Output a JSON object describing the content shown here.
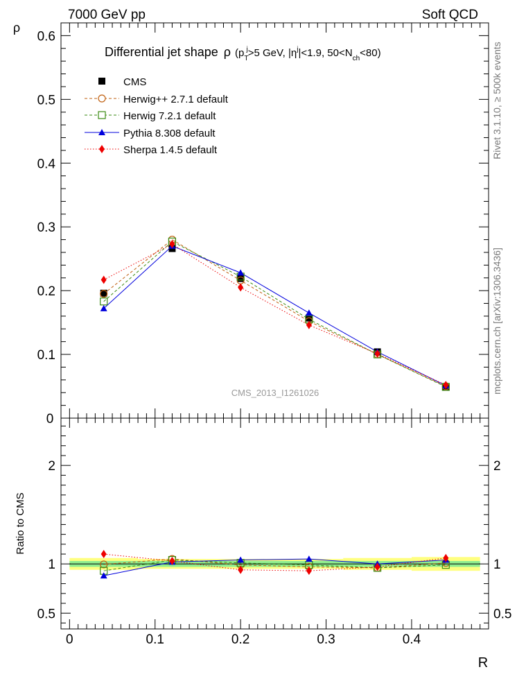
{
  "header": {
    "left": "7000 GeV pp",
    "right": "Soft QCD"
  },
  "side_text": {
    "rivet": "Rivet 3.1.10, ≥ 500k events",
    "mcplots": "mcplots.cern.ch [arXiv:1306.3436]"
  },
  "watermark": "CMS_2013_I1261026",
  "chart_data": [
    {
      "type": "line",
      "title": "Differential jet shape ρ (p_T^j>5 GeV, |η^j|<1.9, 50<N_ch<80)",
      "title_main": "Differential jet shape",
      "title_rho": "ρ",
      "title_open": "(p",
      "title_T": "T",
      "title_j1": "j",
      "title_mid": ">5 GeV, |η",
      "title_j2": "j",
      "title_mid2": "|<1.9, 50<N",
      "title_ch": "ch",
      "title_close": "<80)",
      "ylabel": "ρ",
      "xlim": [
        -0.01,
        0.49
      ],
      "ylim": [
        0,
        0.62
      ],
      "yticks": [
        0.1,
        0.2,
        0.3,
        0.4,
        0.5,
        0.6
      ],
      "ytick_labels": [
        "0.1",
        "0.2",
        "0.3",
        "0.4",
        "0.5",
        "0.6"
      ],
      "zero_label": "0",
      "x": [
        0.04,
        0.12,
        0.2,
        0.28,
        0.36,
        0.44
      ],
      "legend_position": "top-left",
      "series": [
        {
          "name": "CMS",
          "marker": "square-filled",
          "color": "#000000",
          "values": [
            0.196,
            0.266,
            0.219,
            0.157,
            0.104,
            0.049
          ]
        },
        {
          "name": "Herwig++ 2.7.1 default",
          "marker": "circle-open",
          "color": "#c06010",
          "style": "dashed",
          "values": [
            0.195,
            0.28,
            0.216,
            0.152,
            0.1,
            0.05
          ]
        },
        {
          "name": "Herwig 7.2.1 default",
          "marker": "square-open",
          "color": "#3a8a10",
          "style": "dashed",
          "values": [
            0.183,
            0.277,
            0.222,
            0.155,
            0.1,
            0.049
          ]
        },
        {
          "name": "Pythia 8.308 default",
          "marker": "triangle-filled",
          "color": "#0000dd",
          "style": "solid",
          "values": [
            0.172,
            0.27,
            0.228,
            0.165,
            0.104,
            0.051
          ]
        },
        {
          "name": "Sherpa 1.4.5 default",
          "marker": "diamond-filled",
          "color": "#ee0000",
          "style": "dotted",
          "values": [
            0.217,
            0.273,
            0.205,
            0.146,
            0.101,
            0.052
          ]
        }
      ]
    },
    {
      "type": "line",
      "ylabel": "Ratio to CMS",
      "xlabel": "R",
      "xlim": [
        -0.01,
        0.49
      ],
      "ylim": [
        0.34,
        2.48
      ],
      "yticks": [
        0.5,
        1,
        2
      ],
      "ytick_labels": [
        "0.5",
        "1",
        "2"
      ],
      "xticks": [
        0,
        0.1,
        0.2,
        0.3,
        0.4
      ],
      "xtick_labels": [
        "0",
        "0.1",
        "0.2",
        "0.3",
        "0.4"
      ],
      "x": [
        0.04,
        0.12,
        0.2,
        0.28,
        0.36,
        0.44
      ],
      "bands": {
        "bin_edges": [
          0.0,
          0.08,
          0.16,
          0.24,
          0.32,
          0.4,
          0.48
        ],
        "stat_halfwidth": [
          0.03,
          0.03,
          0.03,
          0.03,
          0.03,
          0.03
        ],
        "total_halfwidth": [
          0.06,
          0.05,
          0.05,
          0.05,
          0.06,
          0.07
        ],
        "stat_color": "#90ee90",
        "total_color": "#ffff80"
      },
      "series": [
        {
          "name": "Herwig++ 2.7.1 default",
          "marker": "circle-open",
          "color": "#c06010",
          "style": "dashed",
          "values": [
            0.995,
            1.05,
            0.99,
            0.97,
            0.96,
            1.01
          ]
        },
        {
          "name": "Herwig 7.2.1 default",
          "marker": "square-open",
          "color": "#3a8a10",
          "style": "dashed",
          "values": [
            0.93,
            1.04,
            1.01,
            0.99,
            0.96,
            0.99
          ]
        },
        {
          "name": "Pythia 8.308 default",
          "marker": "triangle-filled",
          "color": "#0000dd",
          "style": "solid",
          "values": [
            0.88,
            1.02,
            1.04,
            1.05,
            1.0,
            1.04
          ]
        },
        {
          "name": "Sherpa 1.4.5 default",
          "marker": "diamond-filled",
          "color": "#ee0000",
          "style": "dotted",
          "values": [
            1.1,
            1.03,
            0.94,
            0.93,
            0.97,
            1.06
          ]
        }
      ]
    }
  ]
}
